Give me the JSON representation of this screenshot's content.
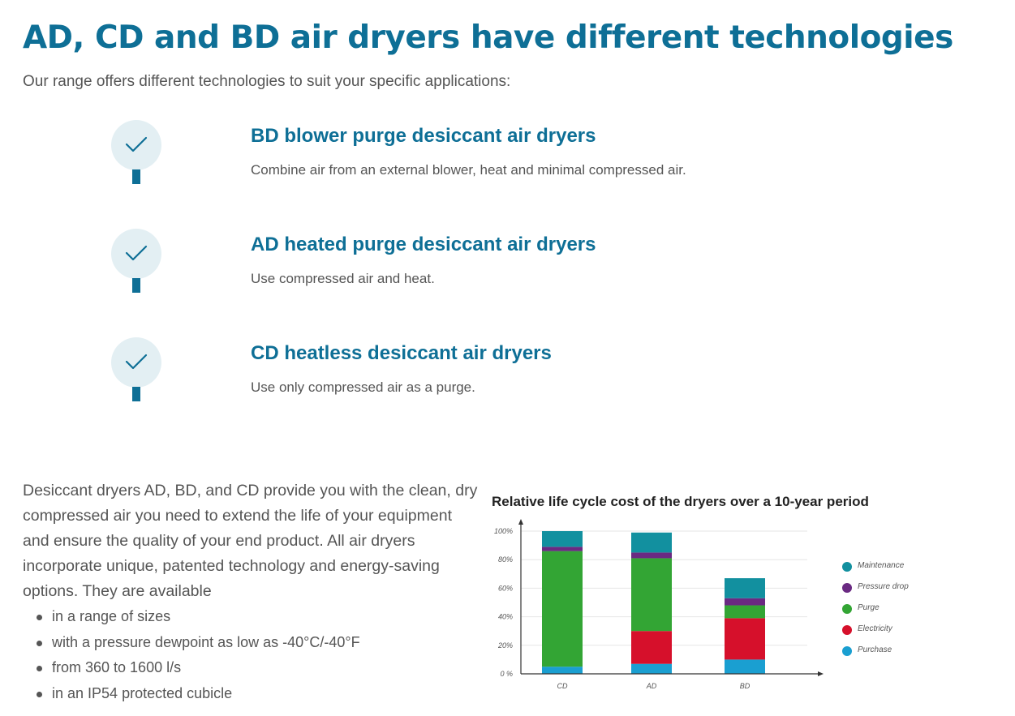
{
  "heading": "AD, CD and BD air dryers have different technologies",
  "intro": "Our range offers different technologies to suit your specific applications:",
  "features": [
    {
      "icon": "check-icon",
      "title": "BD blower purge desiccant air dryers",
      "description": "Combine air from an external blower, heat and minimal compressed air."
    },
    {
      "icon": "check-icon",
      "title": "AD heated purge desiccant air dryers",
      "description": "Use compressed air and heat."
    },
    {
      "icon": "check-icon",
      "title": "CD heatless desiccant air dryers",
      "description": "Use only compressed air as a purge."
    }
  ],
  "body_text": "Desiccant dryers AD, BD, and CD provide you with the clean, dry compressed air you need to extend the life of your equipment and ensure the quality of your end product. All air dryers incorporate unique, patented technology and energy-saving options. They are available",
  "bullets": [
    "in a range of sizes",
    "with a pressure dewpoint as low as -40°C/-40°F",
    "from 360 to 1600 l/s",
    "in an IP54 protected cubicle"
  ],
  "colors": {
    "accent": "#0e6f96",
    "icon_circle": "#e3eff3"
  },
  "chart_data": {
    "type": "bar",
    "stacked": true,
    "title": "Relative life cycle cost of the dryers over a 10-year period",
    "categories": [
      "CD",
      "AD",
      "BD"
    ],
    "yticks": [
      "0 %",
      "20%",
      "40%",
      "60%",
      "80%",
      "100%"
    ],
    "ylim": [
      0,
      100
    ],
    "grid": true,
    "legend_position": "right",
    "series": [
      {
        "name": "Purchase",
        "color": "#1a9fd1",
        "values": [
          5,
          7,
          10
        ]
      },
      {
        "name": "Electricity",
        "color": "#d6102b",
        "values": [
          0,
          23,
          29
        ]
      },
      {
        "name": "Purge",
        "color": "#33a534",
        "values": [
          81,
          51,
          9
        ]
      },
      {
        "name": "Pressure drop",
        "color": "#6a2a82",
        "values": [
          3,
          4,
          5
        ]
      },
      {
        "name": "Maintenance",
        "color": "#12909f",
        "values": [
          11,
          14,
          14
        ]
      }
    ],
    "legend": [
      "Maintenance",
      "Pressure drop",
      "Purge",
      "Electricity",
      "Purchase"
    ]
  }
}
